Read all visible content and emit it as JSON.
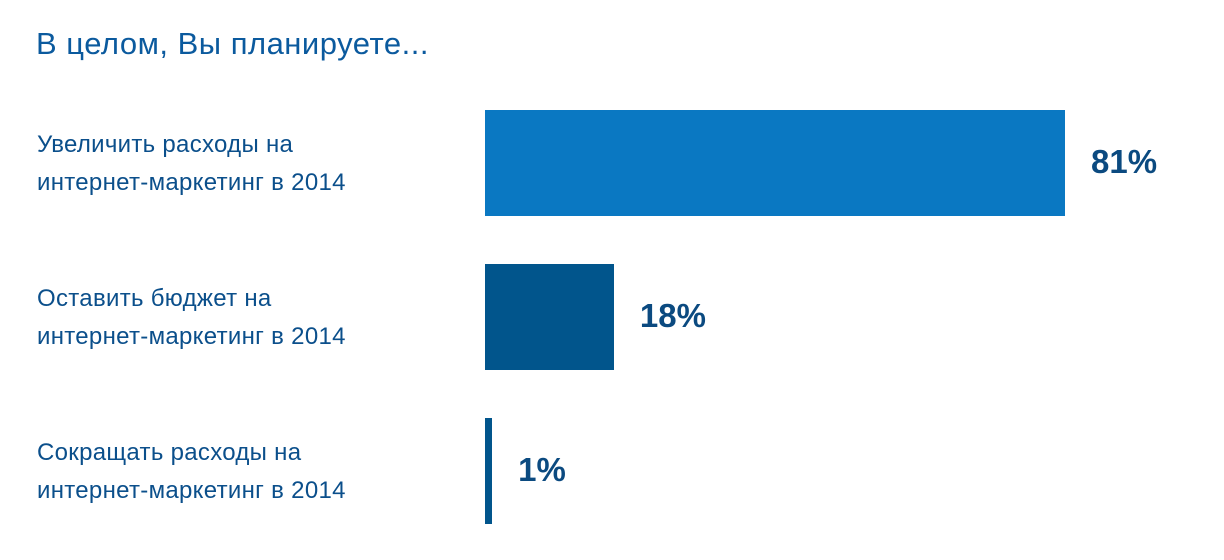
{
  "chart_data": {
    "type": "bar",
    "orientation": "horizontal",
    "title": "В целом, Вы планируете...",
    "categories": [
      "Увеличить расходы на\nинтернет-маркетинг в 2014",
      "Оставить бюджет на\nинтернет-маркетинг в 2014",
      "Сокращать расходы на\nинтернет-маркетинг в 2014"
    ],
    "values": [
      81,
      18,
      1
    ],
    "value_labels": [
      "81%",
      "18%",
      "1%"
    ],
    "colors": [
      "#0a78c2",
      "#01558c",
      "#01558c"
    ]
  }
}
